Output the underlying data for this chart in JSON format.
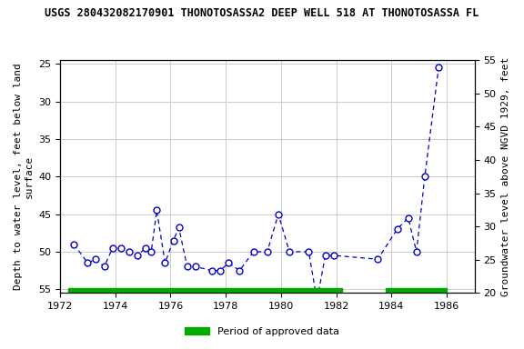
{
  "title": "USGS 280432082170901 THONOTOSASSA2 DEEP WELL 518 AT THONOTOSASSA FL",
  "xlabel_bottom": "",
  "ylabel_left": "Depth to water level, feet below land\nsurface",
  "ylabel_right": "Groundwater level above NGVD 1929, feet",
  "xlim": [
    1972,
    1987
  ],
  "ylim_left": [
    55.5,
    24.5
  ],
  "ylim_right": [
    20,
    55
  ],
  "xticks": [
    1972,
    1974,
    1976,
    1978,
    1980,
    1982,
    1984,
    1986
  ],
  "yticks_left": [
    25,
    30,
    35,
    40,
    45,
    50,
    55
  ],
  "yticks_right": [
    20,
    25,
    30,
    35,
    40,
    45,
    50,
    55
  ],
  "data_x": [
    1972.5,
    1973.0,
    1973.3,
    1973.6,
    1973.9,
    1974.2,
    1974.5,
    1974.8,
    1975.1,
    1975.3,
    1975.5,
    1975.8,
    1976.1,
    1976.3,
    1976.6,
    1976.9,
    1977.5,
    1977.8,
    1978.1,
    1978.5,
    1979.0,
    1979.5,
    1979.9,
    1980.3,
    1981.0,
    1981.3,
    1981.6,
    1981.9,
    1983.5,
    1984.2,
    1984.6,
    1984.9,
    1985.2,
    1985.7
  ],
  "data_y": [
    49.0,
    51.5,
    51.0,
    52.0,
    49.5,
    49.5,
    50.0,
    50.5,
    49.5,
    50.0,
    44.5,
    51.5,
    48.5,
    46.8,
    52.0,
    52.0,
    52.5,
    52.5,
    51.5,
    52.5,
    50.0,
    50.0,
    45.0,
    50.0,
    50.0,
    56.5,
    50.5,
    50.5,
    51.0,
    47.0,
    45.5,
    50.0,
    40.0,
    25.5
  ],
  "line_color": "#0000CC",
  "marker_color": "#0000CC",
  "marker_face": "white",
  "approved_bars": [
    {
      "x_start": 1972.3,
      "x_end": 1982.2
    },
    {
      "x_start": 1983.8,
      "x_end": 1986.0
    }
  ],
  "approved_color": "#00AA00",
  "legend_label": "Period of approved data",
  "background_color": "#ffffff",
  "plot_bg_color": "#ffffff",
  "grid_color": "#cccccc",
  "title_fontsize": 8.5,
  "label_fontsize": 8,
  "tick_fontsize": 8
}
